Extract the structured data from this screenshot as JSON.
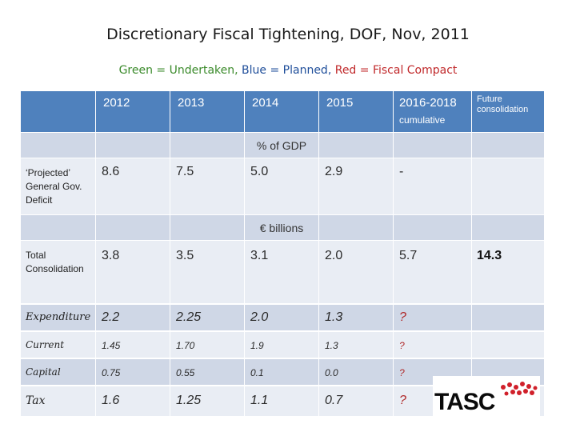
{
  "title": "Discretionary Fiscal Tightening, DOF, Nov, 2011",
  "legend": {
    "green": "Green = Undertaken,",
    "blue": "Blue = Planned,",
    "red": "Red = Fiscal Compact"
  },
  "headers": {
    "y2012": "2012",
    "y2013": "2013",
    "y2014": "2014",
    "y2015": "2015",
    "y2016": "2016-2018",
    "y2016_sub": "cumulative",
    "future": "Future consolidation"
  },
  "bands": {
    "gdp": "% of GDP",
    "eur": "€ billions"
  },
  "rows": {
    "deficit": {
      "label": "‘Projected’ General Gov. Deficit",
      "v2012": "8.6",
      "v2013": "7.5",
      "v2014": "5.0",
      "v2015": "2.9",
      "v2016": "-"
    },
    "total": {
      "label": "Total Consolidation",
      "v2012": "3.8",
      "v2013": "3.5",
      "v2014": "3.1",
      "v2015": "2.0",
      "v2016": "5.7",
      "future": "14.3"
    },
    "expenditure": {
      "label": "Expenditure",
      "v2012": "2.2",
      "v2013": "2.25",
      "v2014": "2.0",
      "v2015": "1.3",
      "v2016": "?"
    },
    "current": {
      "label": "Current",
      "v2012": "1.45",
      "v2013": "1.70",
      "v2014": "1.9",
      "v2015": "1.3",
      "v2016": "?"
    },
    "capital": {
      "label": "Capital",
      "v2012": "0.75",
      "v2013": "0.55",
      "v2014": "0.1",
      "v2015": "0.0",
      "v2016": "?"
    },
    "tax": {
      "label": "Tax",
      "v2012": "1.6",
      "v2013": "1.25",
      "v2014": "1.1",
      "v2015": "0.7",
      "v2016": "?"
    }
  },
  "logo": {
    "text": "TASC"
  }
}
